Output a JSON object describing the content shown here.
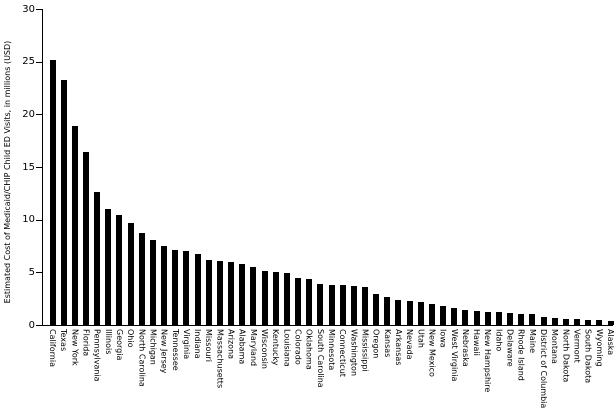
{
  "chart_data": {
    "type": "bar",
    "title": "",
    "xlabel": "",
    "ylabel": "Estimated Cost of Medicaid/CHIP Child ED Visits, in millions (USD)",
    "ylim": [
      0,
      30
    ],
    "yticks": [
      0,
      5,
      10,
      15,
      20,
      25,
      30
    ],
    "grid": false,
    "legend": "none",
    "bar_color": "#000000",
    "background_color": "#ffffff",
    "categories": [
      "California",
      "Texas",
      "New York",
      "Florida",
      "Pennsylvania",
      "Illinois",
      "Georgia",
      "Ohio",
      "North Carolina",
      "Michigan",
      "New Jersey",
      "Tennessee",
      "Virginia",
      "Indiana",
      "Missouri",
      "Massachusetts",
      "Arizona",
      "Alabama",
      "Maryland",
      "Wisconsin",
      "Kentucky",
      "Louisiana",
      "Colorado",
      "Oklahoma",
      "South Carolina",
      "Minnesota",
      "Connecticut",
      "Washington",
      "Mississippi",
      "Oregon",
      "Kansas",
      "Arkansas",
      "Nevada",
      "Utah",
      "New Mexico",
      "Iowa",
      "West Virginia",
      "Nebraska",
      "Hawaii",
      "New Hampshire",
      "Idaho",
      "Delaware",
      "Rhode Island",
      "Maine",
      "District of Columbia",
      "Montana",
      "North Dakota",
      "Vermont",
      "South Dakota",
      "Wyoming",
      "Alaska"
    ],
    "values": [
      25.2,
      23.3,
      18.9,
      16.4,
      12.6,
      11.0,
      10.4,
      9.7,
      8.7,
      8.1,
      7.5,
      7.1,
      7.0,
      6.7,
      6.2,
      6.1,
      6.0,
      5.8,
      5.5,
      5.1,
      5.0,
      4.9,
      4.5,
      4.4,
      3.9,
      3.8,
      3.8,
      3.7,
      3.6,
      2.9,
      2.7,
      2.4,
      2.3,
      2.2,
      2.0,
      1.8,
      1.6,
      1.4,
      1.3,
      1.2,
      1.2,
      1.1,
      1.0,
      1.0,
      0.8,
      0.7,
      0.6,
      0.6,
      0.5,
      0.5,
      0.4
    ]
  }
}
